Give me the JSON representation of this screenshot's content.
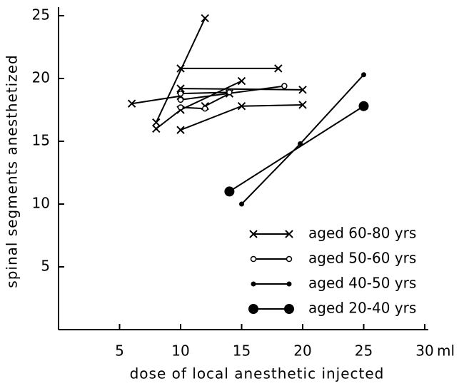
{
  "chart_data": {
    "type": "line",
    "xlabel": "dose of local anesthetic injected",
    "ylabel": "spinal segments anesthetized",
    "x_unit": "ml",
    "xlim": [
      0,
      30
    ],
    "ylim": [
      0,
      25
    ],
    "xticks": [
      5,
      10,
      15,
      20,
      25,
      30
    ],
    "yticks": [
      5,
      10,
      15,
      20,
      25
    ],
    "color": "#000000",
    "series": [
      {
        "name": "aged 60-80 yrs",
        "marker": "x",
        "lines": [
          {
            "x": [
              8,
              12
            ],
            "values": [
              16.5,
              24.8
            ]
          },
          {
            "x": [
              10,
              18
            ],
            "values": [
              20.8,
              20.8
            ]
          },
          {
            "x": [
              6,
              10
            ],
            "values": [
              18,
              18.6
            ]
          },
          {
            "x": [
              10,
              20
            ],
            "values": [
              19.2,
              19.1
            ]
          },
          {
            "x": [
              8,
              10,
              15
            ],
            "values": [
              16,
              17.5,
              19.8
            ]
          },
          {
            "x": [
              10,
              15,
              20
            ],
            "values": [
              15.9,
              17.8,
              17.9
            ]
          },
          {
            "x": [
              12,
              14
            ],
            "values": [
              17.8,
              18.8
            ]
          }
        ]
      },
      {
        "name": "aged 50-60 yrs",
        "marker": "open",
        "lines": [
          {
            "x": [
              10,
              18.5
            ],
            "values": [
              18.3,
              19.4
            ]
          },
          {
            "x": [
              10,
              12
            ],
            "values": [
              17.7,
              17.6
            ]
          },
          {
            "x": [
              10,
              14
            ],
            "values": [
              18.8,
              18.9
            ]
          }
        ]
      },
      {
        "name": "aged 40-50 yrs",
        "marker": "dot",
        "lines": [
          {
            "x": [
              15,
              19.8,
              25
            ],
            "values": [
              10,
              14.8,
              20.3
            ]
          }
        ]
      },
      {
        "name": "aged 20-40 yrs",
        "marker": "bigdot",
        "lines": [
          {
            "x": [
              14,
              25
            ],
            "values": [
              11,
              17.8
            ]
          }
        ]
      }
    ]
  }
}
